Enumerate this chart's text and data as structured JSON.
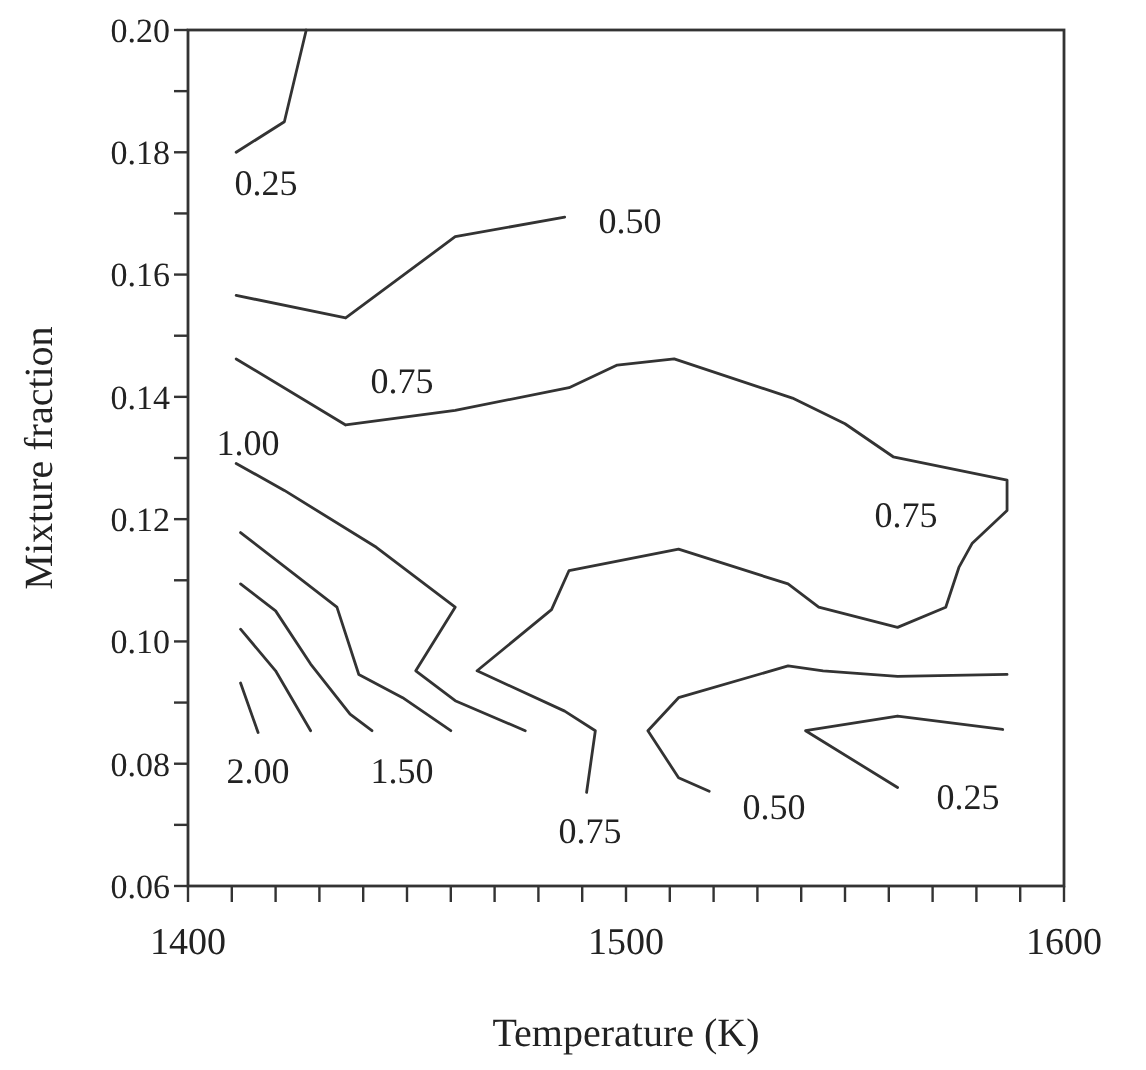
{
  "chart_data": {
    "type": "line",
    "xlabel": "Temperature (K)",
    "ylabel": "Mixture fraction",
    "marker": "none",
    "line_style": "solid",
    "grid": false,
    "xlim": [
      1400,
      1600
    ],
    "ylim": [
      0.06,
      0.2
    ],
    "xticks": [
      1400,
      {
        "value": 1410,
        "label": null
      },
      {
        "value": 1420,
        "label": null
      },
      {
        "value": 1430,
        "label": null
      },
      {
        "value": 1440,
        "label": null
      },
      {
        "value": 1450,
        "label": null
      },
      {
        "value": 1460,
        "label": null
      },
      {
        "value": 1470,
        "label": null
      },
      {
        "value": 1480,
        "label": null
      },
      {
        "value": 1490,
        "label": null
      },
      1500,
      {
        "value": 1510,
        "label": null
      },
      {
        "value": 1520,
        "label": null
      },
      {
        "value": 1530,
        "label": null
      },
      {
        "value": 1540,
        "label": null
      },
      {
        "value": 1550,
        "label": null
      },
      {
        "value": 1560,
        "label": null
      },
      {
        "value": 1570,
        "label": null
      },
      {
        "value": 1580,
        "label": null
      },
      {
        "value": 1590,
        "label": null
      },
      1600
    ],
    "yticks": [
      {
        "value": 0.06,
        "label": "0.06"
      },
      {
        "value": 0.07,
        "label": null
      },
      {
        "value": 0.08,
        "label": "0.08"
      },
      {
        "value": 0.09,
        "label": null
      },
      {
        "value": 0.1,
        "label": "0.10"
      },
      {
        "value": 0.11,
        "label": null
      },
      {
        "value": 0.12,
        "label": "0.12"
      },
      {
        "value": 0.13,
        "label": null
      },
      {
        "value": 0.14,
        "label": "0.14"
      },
      {
        "value": 0.15,
        "label": null
      },
      {
        "value": 0.16,
        "label": "0.16"
      },
      {
        "value": 0.17,
        "label": null
      },
      {
        "value": 0.18,
        "label": "0.18"
      },
      {
        "value": 0.19,
        "label": null
      },
      {
        "value": 0.2,
        "label": "0.20"
      }
    ],
    "series": [
      {
        "color": "#333333",
        "x": [
          1411,
          1422,
          1427
        ],
        "values": [
          0.18,
          0.185,
          0.2
        ]
      },
      {
        "color": "#333333",
        "x": [
          1411,
          1436,
          1461,
          1486
        ],
        "values": [
          0.1566,
          0.1529,
          0.1662,
          0.1694
        ]
      },
      {
        "color": "#333333",
        "x": [
          1411,
          1436,
          1461,
          1487,
          1498,
          1511,
          1538,
          1550,
          1561,
          1587,
          1587,
          1579,
          1576,
          1573,
          1562,
          1544,
          1537,
          1512,
          1487,
          1483,
          1466,
          1486,
          1493,
          1491
        ],
        "values": [
          0.1462,
          0.1354,
          0.1378,
          0.1415,
          0.1452,
          0.1462,
          0.1398,
          0.1356,
          0.1302,
          0.1264,
          0.1214,
          0.116,
          0.1121,
          0.1056,
          0.1023,
          0.1056,
          0.1094,
          0.1151,
          0.1116,
          0.1052,
          0.0952,
          0.0886,
          0.0854,
          0.0753
        ]
      },
      {
        "color": "#333333",
        "x": [
          1411,
          1422,
          1443,
          1461,
          1452,
          1461,
          1477
        ],
        "values": [
          0.1291,
          0.1247,
          0.1154,
          0.1056,
          0.0952,
          0.0903,
          0.0854
        ]
      },
      {
        "color": "#333333",
        "x": [
          1412,
          1434,
          1439,
          1449,
          1460
        ],
        "values": [
          0.1178,
          0.1056,
          0.0946,
          0.0908,
          0.0854
        ]
      },
      {
        "color": "#333333",
        "x": [
          1412,
          1420,
          1428,
          1437,
          1442
        ],
        "values": [
          0.1094,
          0.105,
          0.0963,
          0.0881,
          0.0854
        ]
      },
      {
        "color": "#333333",
        "x": [
          1412,
          1420,
          1428
        ],
        "values": [
          0.102,
          0.0952,
          0.0854
        ]
      },
      {
        "color": "#333333",
        "x": [
          1412,
          1416
        ],
        "values": [
          0.0932,
          0.0851
        ]
      },
      {
        "color": "#333333",
        "x": [
          1587,
          1562,
          1545,
          1537,
          1512,
          1505,
          1512,
          1519
        ],
        "values": [
          0.0946,
          0.0943,
          0.0952,
          0.096,
          0.0908,
          0.0854,
          0.0777,
          0.0755
        ]
      },
      {
        "color": "#333333",
        "x": [
          1586,
          1562,
          1541,
          1562
        ],
        "values": [
          0.0856,
          0.0878,
          0.0854,
          0.0761
        ]
      }
    ],
    "annotations": [
      "0.25",
      "0.50",
      "0.75",
      "1.00",
      "0.75",
      "2.00",
      "1.50",
      "0.75",
      "0.50",
      "0.25"
    ]
  }
}
